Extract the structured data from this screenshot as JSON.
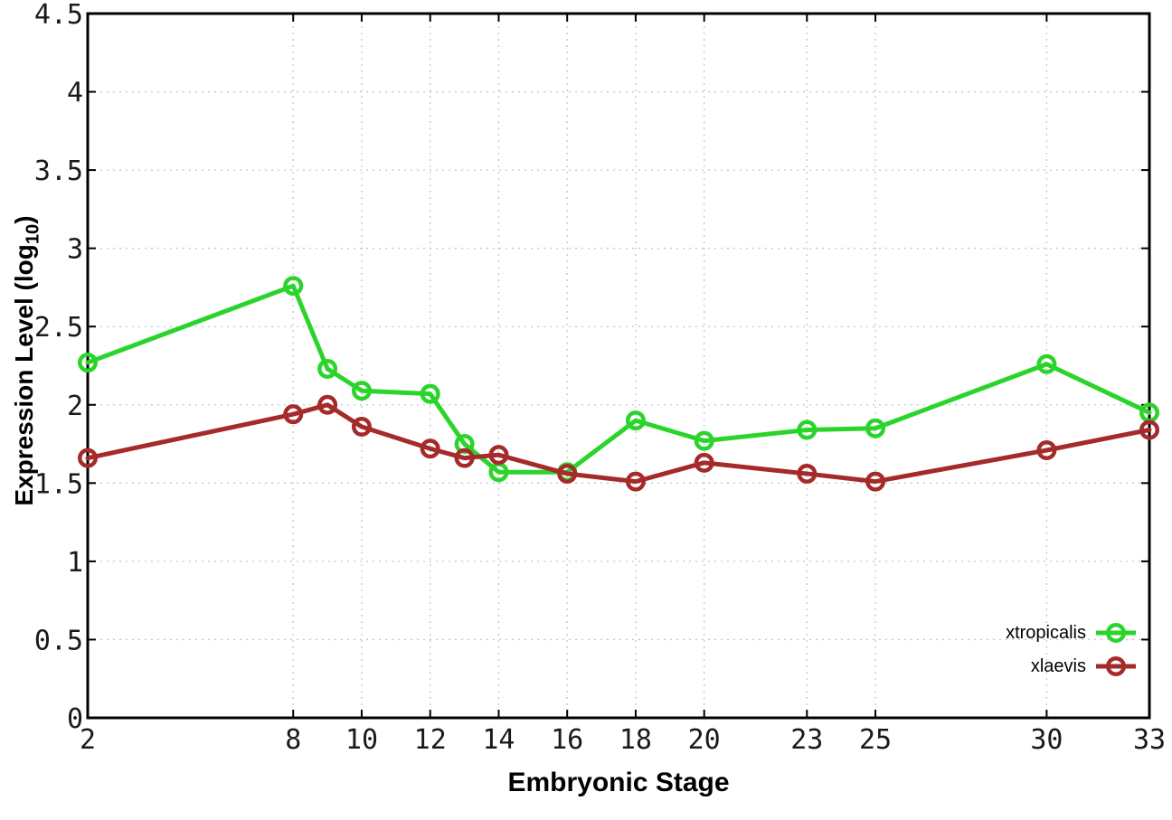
{
  "figure": {
    "background": "#ffffff",
    "ylabel_main": "Expression Level (log",
    "ylabel_sub": "10",
    "ylabel_close": ")"
  },
  "chart_data": {
    "type": "line",
    "title": "",
    "xlabel": "Embryonic Stage",
    "ylabel": "Expression Level (log10)",
    "x": [
      2,
      8,
      9,
      10,
      12,
      13,
      14,
      16,
      18,
      20,
      23,
      25,
      30,
      33
    ],
    "series": [
      {
        "name": "xtropicalis",
        "color": "#2bd42b",
        "values": [
          2.27,
          2.76,
          2.23,
          2.09,
          2.07,
          1.75,
          1.57,
          1.57,
          1.9,
          1.77,
          1.84,
          1.85,
          2.26,
          1.95
        ]
      },
      {
        "name": "xlaevis",
        "color": "#a52a2a",
        "values": [
          1.66,
          1.94,
          2.0,
          1.86,
          1.72,
          1.66,
          1.68,
          1.56,
          1.51,
          1.63,
          1.56,
          1.51,
          1.71,
          1.84
        ]
      }
    ],
    "xlim": [
      2,
      33
    ],
    "ylim": [
      0,
      4.5
    ],
    "xticks": {
      "values": [
        2,
        8,
        10,
        12,
        14,
        16,
        18,
        20,
        23,
        25,
        30,
        33
      ],
      "labels": [
        "2",
        "8",
        "10",
        "12",
        "14",
        "16",
        "18",
        "20",
        "23",
        "25",
        "30",
        "33"
      ]
    },
    "yticks": {
      "values": [
        0,
        0.5,
        1,
        1.5,
        2,
        2.5,
        3,
        3.5,
        4,
        4.5
      ],
      "labels": [
        "0",
        "0.5",
        "1",
        "1.5",
        "2",
        "2.5",
        "3",
        "3.5",
        "4",
        "4.5"
      ]
    },
    "grid": true,
    "grid_color": "#c6c6c6",
    "axis_color": "#000000",
    "tick_label_color": "#1a1a1a",
    "marker": "open-circle",
    "legend_position": "inside-bottom-right"
  }
}
